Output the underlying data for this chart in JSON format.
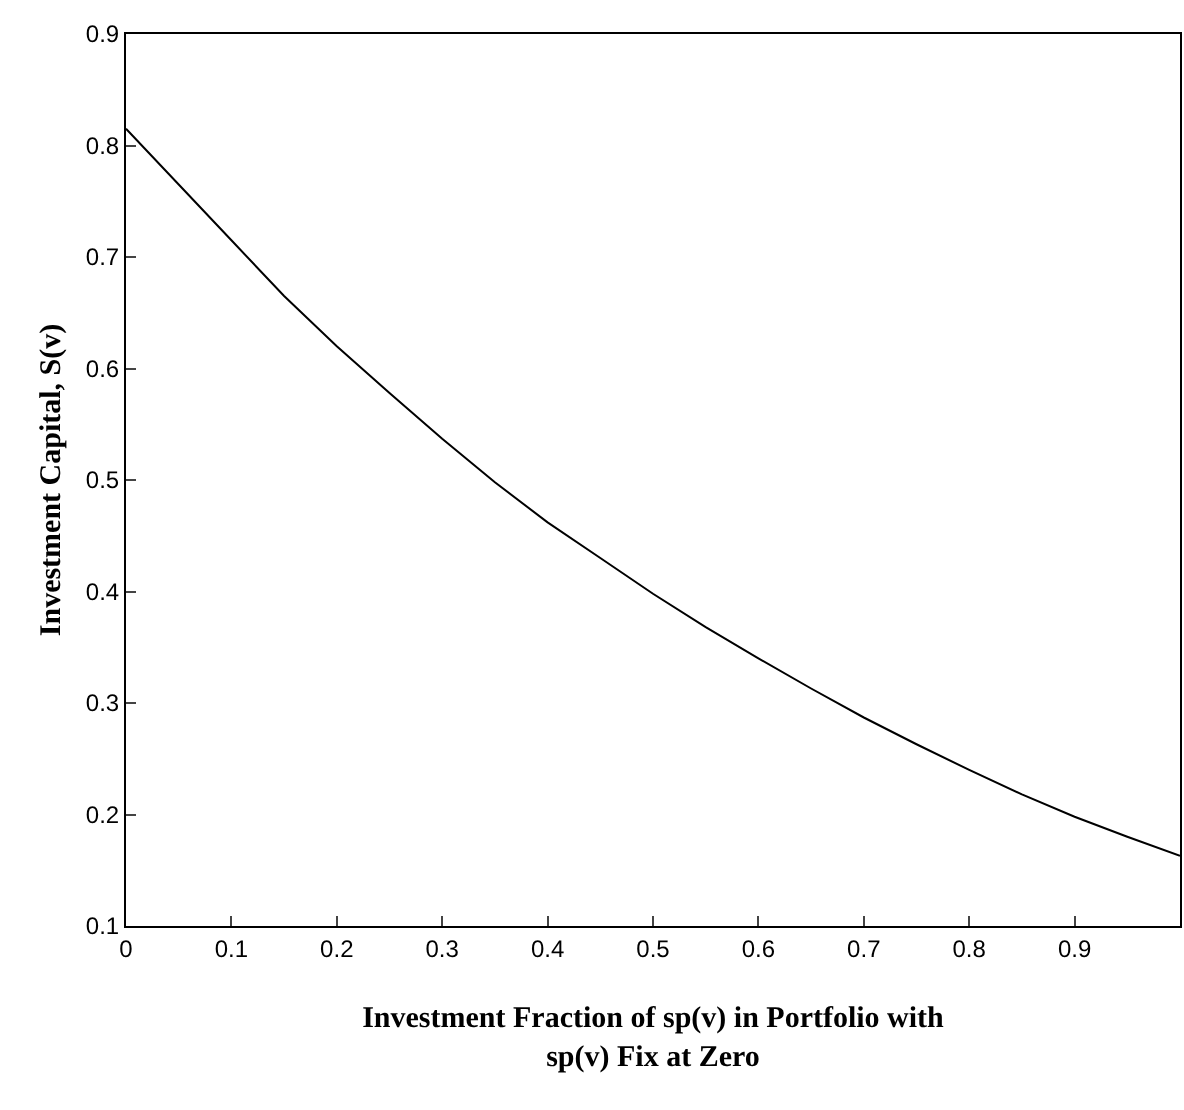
{
  "chart_data": {
    "type": "line",
    "xlabel": "Investment Fraction of sp(v) in Portfolio with\nsp(v) Fix at Zero",
    "ylabel": "Investment Capital, S(v)",
    "x": [
      0,
      0.05,
      0.1,
      0.15,
      0.2,
      0.25,
      0.3,
      0.35,
      0.4,
      0.45,
      0.5,
      0.55,
      0.6,
      0.65,
      0.7,
      0.75,
      0.8,
      0.85,
      0.9,
      0.95,
      1.0
    ],
    "series": [
      {
        "color": "#000000",
        "values": [
          0.815,
          0.765,
          0.715,
          0.665,
          0.62,
          0.578,
          0.537,
          0.498,
          0.462,
          0.43,
          0.398,
          0.368,
          0.34,
          0.313,
          0.287,
          0.263,
          0.24,
          0.218,
          0.198,
          0.18,
          0.163
        ]
      }
    ],
    "xlim": [
      0,
      1.0
    ],
    "ylim": [
      0.1,
      0.9
    ],
    "xticks": [
      0,
      0.1,
      0.2,
      0.3,
      0.4,
      0.5,
      0.6,
      0.7,
      0.8,
      0.9
    ],
    "yticks": [
      0.1,
      0.2,
      0.3,
      0.4,
      0.5,
      0.6,
      0.7,
      0.8,
      0.9
    ],
    "line_style": "solid"
  }
}
